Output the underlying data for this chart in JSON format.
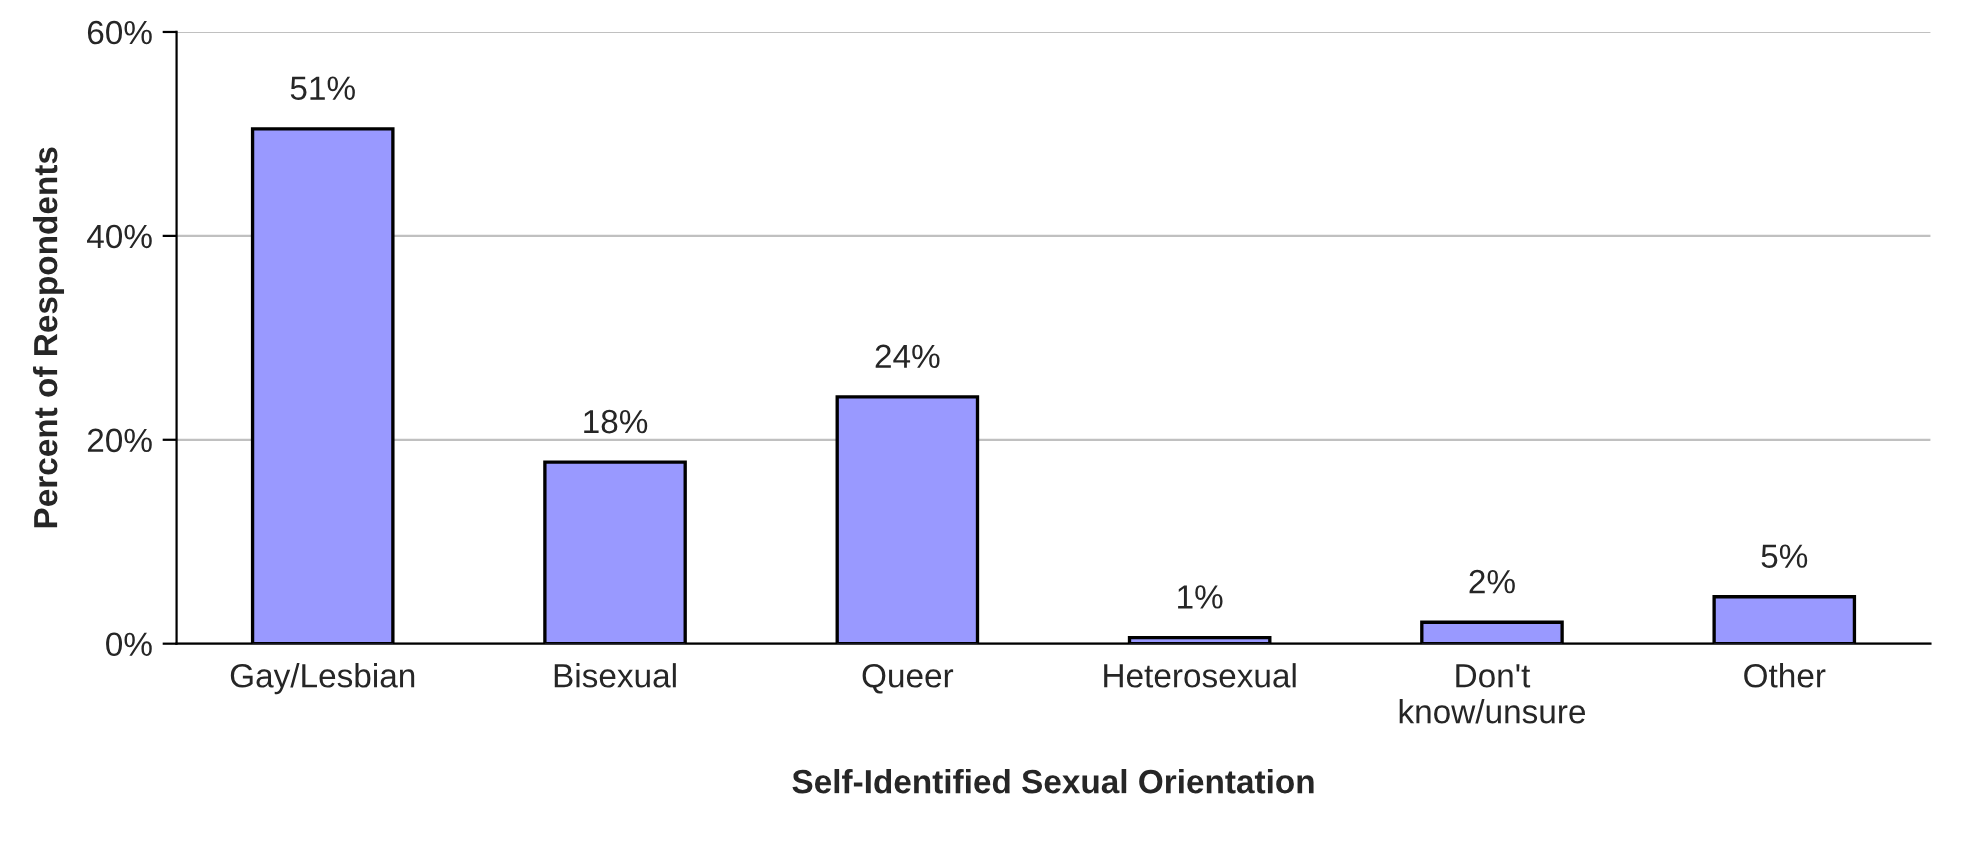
{
  "chart_data": {
    "type": "bar",
    "categories": [
      "Gay/Lesbian",
      "Bisexual",
      "Queer",
      "Heterosexual",
      "Don't\nknow/unsure",
      "Other"
    ],
    "values": [
      50.5,
      17.8,
      24.2,
      0.6,
      2.1,
      4.6
    ],
    "value_labels": [
      "51%",
      "18%",
      "24%",
      "1%",
      "2%",
      "5%"
    ],
    "color": "#9999ff",
    "xlabel": "Self-Identified Sexual Orientation",
    "ylabel": "Percent of Respondents",
    "ylim": [
      0,
      60
    ],
    "yticks": [
      {
        "value": 0,
        "label": "0%"
      },
      {
        "value": 20,
        "label": "20%"
      },
      {
        "value": 40,
        "label": "40%"
      },
      {
        "value": 60,
        "label": "60%"
      }
    ],
    "grid": "y",
    "legend": false
  }
}
